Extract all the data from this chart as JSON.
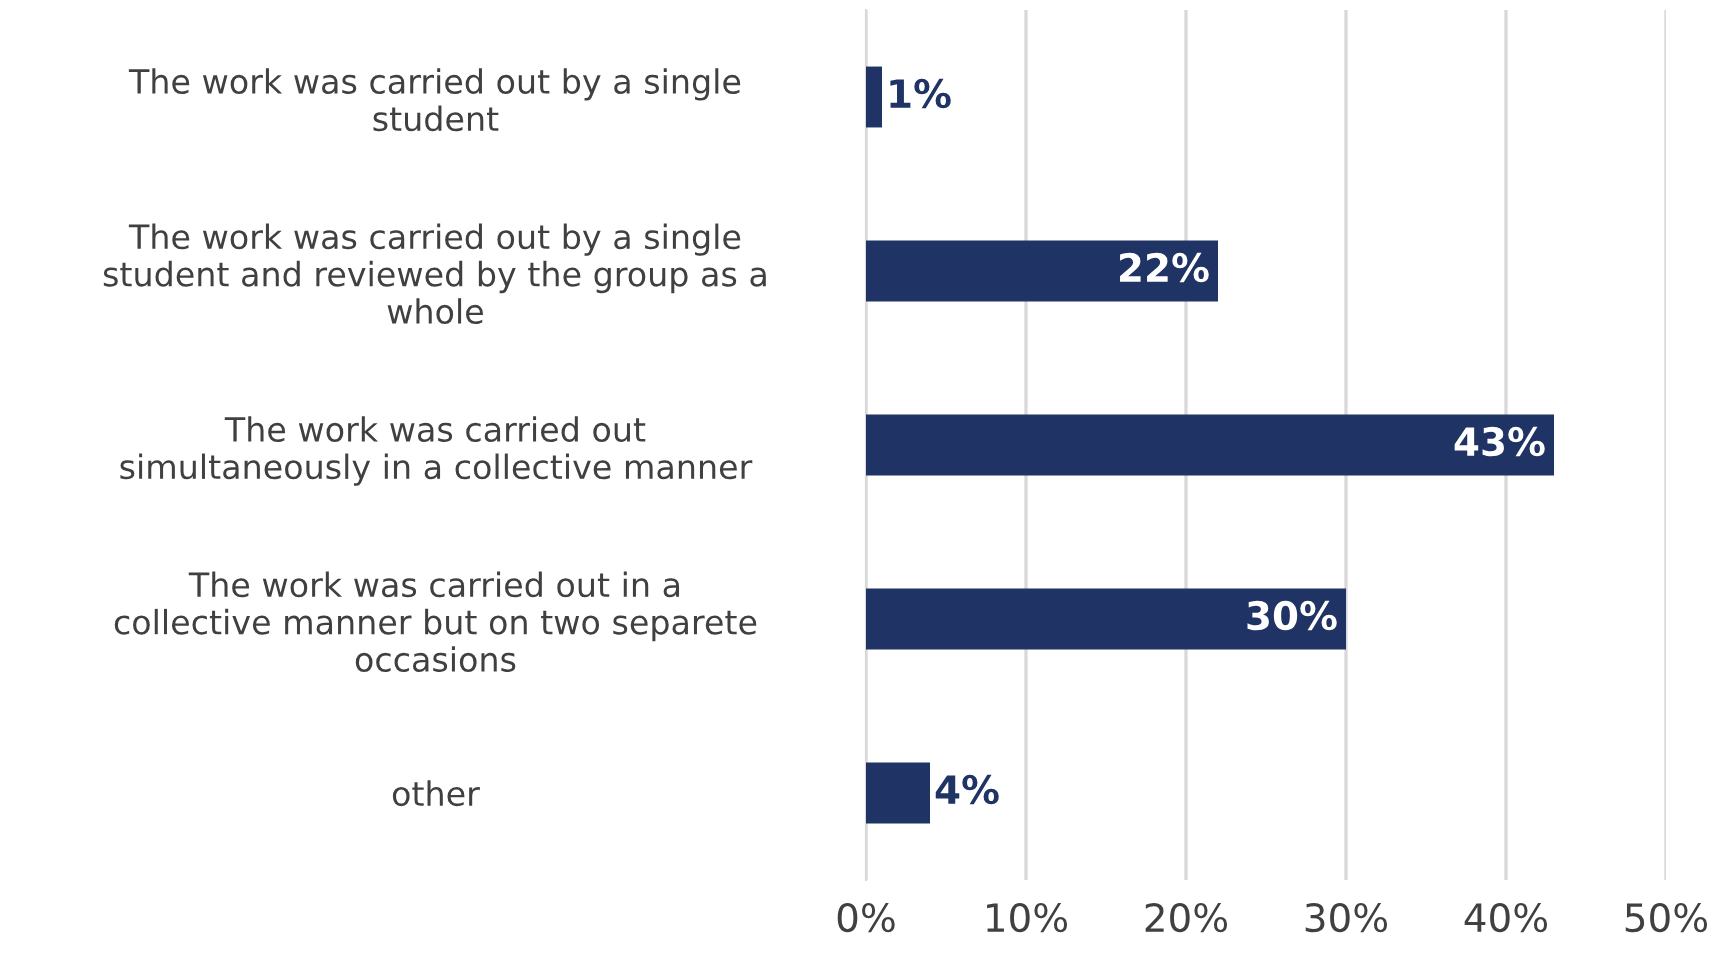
{
  "chart_data": {
    "type": "bar",
    "orientation": "horizontal",
    "categories": [
      "The work was carried out by a single\nstudent",
      "The work was carried out by a single\nstudent and reviewed by the group as a\nwhole",
      "The work was carried out\nsimultaneously in a collective manner",
      "The work was carried out in a\ncollective manner but on two separete\noccasions",
      "other"
    ],
    "values": [
      1,
      22,
      43,
      30,
      4
    ],
    "value_labels": [
      "1%",
      "22%",
      "43%",
      "30%",
      "4%"
    ],
    "color": "#1f3464",
    "xlim": [
      0,
      50
    ],
    "xticks": [
      {
        "value": 0,
        "label": "0%"
      },
      {
        "value": 10,
        "label": "10%"
      },
      {
        "value": 20,
        "label": "20%"
      },
      {
        "value": 30,
        "label": "30%"
      },
      {
        "value": 40,
        "label": "40%"
      },
      {
        "value": 50,
        "label": "50%"
      }
    ],
    "grid": "x",
    "legend": false
  }
}
